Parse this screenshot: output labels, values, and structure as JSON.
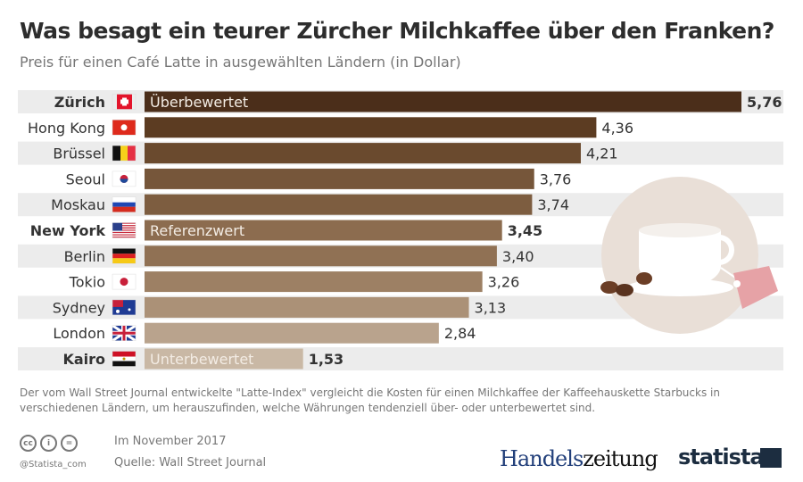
{
  "title": "Was besagt ein teurer Zürcher Milchkaffee über den Franken?",
  "subtitle": "Preis für einen Café Latte in ausgewählten Ländern (in Dollar)",
  "chart_data": {
    "type": "bar",
    "orientation": "horizontal",
    "categories": [
      "Zürich",
      "Hong Kong",
      "Brüssel",
      "Seoul",
      "Moskau",
      "New York",
      "Berlin",
      "Tokio",
      "Sydney",
      "London",
      "Kairo"
    ],
    "values": [
      5.76,
      4.36,
      4.21,
      3.76,
      3.74,
      3.45,
      3.4,
      3.26,
      3.13,
      2.84,
      1.53
    ],
    "value_labels": [
      "5,76",
      "4,36",
      "4,21",
      "3,76",
      "3,74",
      "3,45",
      "3,40",
      "3,26",
      "3,13",
      "2,84",
      "1,53"
    ],
    "bar_annotations": {
      "0": "Überbewertet",
      "5": "Referenzwert",
      "10": "Unterbewertet"
    },
    "highlighted": [
      "Zürich",
      "New York",
      "Kairo"
    ],
    "flags": [
      "switzerland",
      "hong-kong",
      "belgium",
      "south-korea",
      "russia",
      "usa",
      "germany",
      "japan",
      "australia",
      "uk",
      "egypt"
    ],
    "colors": [
      "#4b2e1a",
      "#5c3c22",
      "#6a4a2e",
      "#76563a",
      "#7d5d40",
      "#8c6c4f",
      "#907154",
      "#9d8064",
      "#ab9177",
      "#b9a38d",
      "#c9b8a5"
    ],
    "xlim": [
      0,
      5.76
    ],
    "grid": false,
    "legend": "none"
  },
  "note": "Der vom Wall Street Journal entwickelte \"Latte-Index\" vergleicht die Kosten für einen Milchkaffee der Kaffeehauskette Starbucks in verschiedenen Ländern, um herauszufinden, welche Währungen tendenziell über- oder unterbewertet sind.",
  "footer": {
    "date": "Im November 2017",
    "source": "Quelle: Wall Street Journal",
    "handle": "@Statista_com",
    "cc": [
      "cc",
      "i",
      "="
    ],
    "logo1a": "Handels",
    "logo1b": "zeitung",
    "logo2": "statista"
  }
}
